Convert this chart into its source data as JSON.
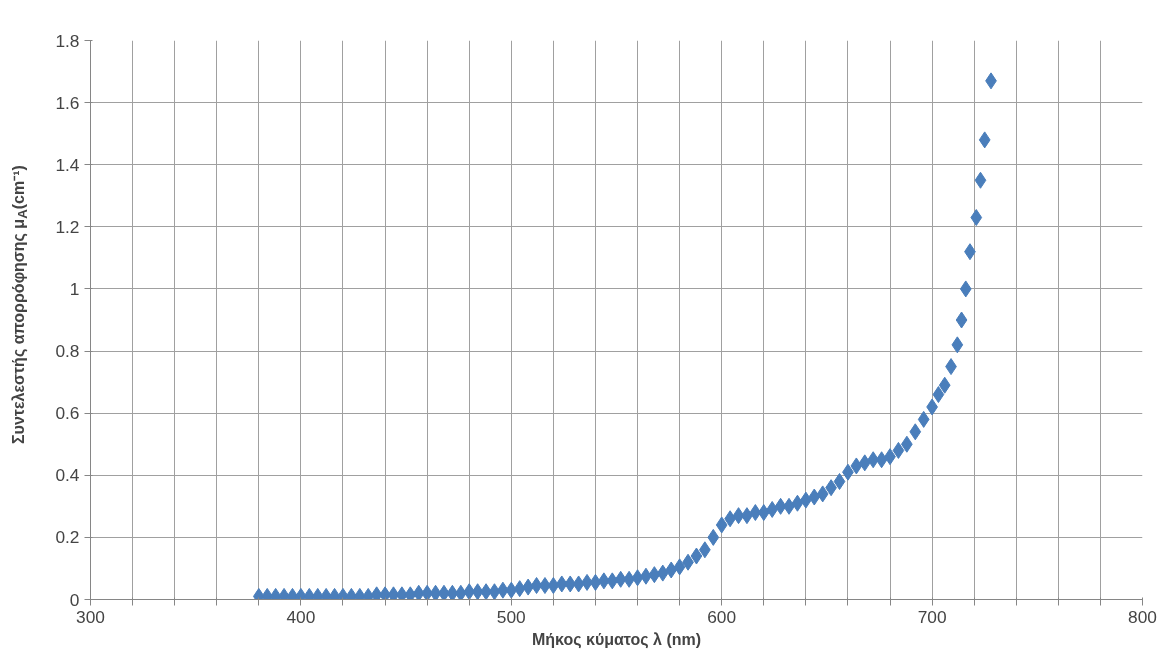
{
  "chart_data": {
    "type": "scatter",
    "xlabel": "Μήκος κύματος λ (nm)",
    "ylabel": "Συντελεστής απορρόφησης μ$_{A}$(cm⁻¹)",
    "x": [
      380,
      384,
      388,
      392,
      396,
      400,
      404,
      408,
      412,
      416,
      420,
      424,
      428,
      432,
      436,
      440,
      444,
      448,
      452,
      456,
      460,
      464,
      468,
      472,
      476,
      480,
      484,
      488,
      492,
      496,
      500,
      504,
      508,
      512,
      516,
      520,
      524,
      528,
      532,
      536,
      540,
      544,
      548,
      552,
      556,
      560,
      564,
      568,
      572,
      576,
      580,
      584,
      588,
      592,
      596,
      600,
      604,
      608,
      612,
      616,
      620,
      624,
      628,
      632,
      636,
      640,
      644,
      648,
      652,
      656,
      660,
      664,
      668,
      672,
      676,
      680,
      684,
      688,
      692,
      696,
      700,
      703,
      706,
      709,
      712,
      714,
      716,
      718,
      721,
      723,
      725,
      728
    ],
    "series": [
      {
        "color": "#4a7ebb",
        "values": [
          0.01,
          0.01,
          0.01,
          0.01,
          0.01,
          0.01,
          0.01,
          0.01,
          0.01,
          0.01,
          0.01,
          0.01,
          0.01,
          0.01,
          0.015,
          0.015,
          0.015,
          0.015,
          0.015,
          0.02,
          0.02,
          0.02,
          0.02,
          0.02,
          0.02,
          0.025,
          0.025,
          0.025,
          0.025,
          0.03,
          0.03,
          0.035,
          0.04,
          0.045,
          0.045,
          0.045,
          0.05,
          0.05,
          0.05,
          0.055,
          0.055,
          0.06,
          0.06,
          0.065,
          0.065,
          0.07,
          0.075,
          0.08,
          0.085,
          0.095,
          0.105,
          0.12,
          0.14,
          0.16,
          0.2,
          0.24,
          0.26,
          0.27,
          0.27,
          0.28,
          0.28,
          0.29,
          0.3,
          0.3,
          0.31,
          0.32,
          0.33,
          0.34,
          0.36,
          0.38,
          0.41,
          0.43,
          0.44,
          0.45,
          0.45,
          0.46,
          0.48,
          0.5,
          0.54,
          0.58,
          0.62,
          0.66,
          0.69,
          0.75,
          0.82,
          0.9,
          1.0,
          1.12,
          1.23,
          1.35,
          1.48,
          1.67
        ]
      }
    ],
    "xlim": [
      300,
      800
    ],
    "ylim": [
      0,
      1.8
    ],
    "xticks": [
      300,
      {
        "value": 320,
        "label": null
      },
      {
        "value": 340,
        "label": null
      },
      {
        "value": 360,
        "label": null
      },
      {
        "value": 380,
        "label": null
      },
      400,
      {
        "value": 420,
        "label": null
      },
      {
        "value": 440,
        "label": null
      },
      {
        "value": 460,
        "label": null
      },
      {
        "value": 480,
        "label": null
      },
      500,
      {
        "value": 520,
        "label": null
      },
      {
        "value": 540,
        "label": null
      },
      {
        "value": 560,
        "label": null
      },
      {
        "value": 580,
        "label": null
      },
      600,
      {
        "value": 620,
        "label": null
      },
      {
        "value": 640,
        "label": null
      },
      {
        "value": 660,
        "label": null
      },
      {
        "value": 680,
        "label": null
      },
      700,
      {
        "value": 720,
        "label": null
      },
      {
        "value": 740,
        "label": null
      },
      {
        "value": 760,
        "label": null
      },
      {
        "value": 780,
        "label": null
      },
      800
    ],
    "yticks": [
      0,
      0.2,
      0.4,
      0.6,
      0.8,
      1,
      1.2,
      1.4,
      1.6,
      1.8
    ],
    "grid": true,
    "marker": "diamond"
  }
}
